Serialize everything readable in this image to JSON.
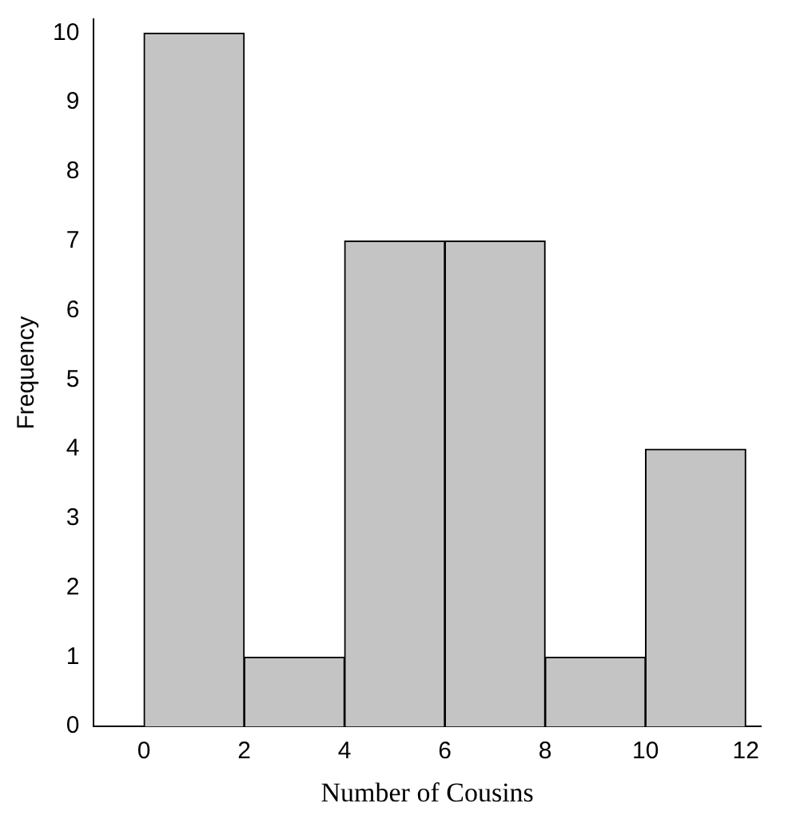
{
  "chart_data": {
    "type": "histogram",
    "xlabel": "Number of Cousins",
    "ylabel": "Frequency",
    "bins": [
      0,
      2,
      4,
      6,
      8,
      10,
      12
    ],
    "values": [
      10,
      1,
      7,
      7,
      1,
      4
    ],
    "color": "#c4c4c4",
    "xlim": [
      -1,
      12.3
    ],
    "xticks": [
      0,
      2,
      4,
      6,
      8,
      10,
      12
    ],
    "ylim": [
      0,
      10.2
    ],
    "yticks": [
      0,
      1,
      2,
      3,
      4,
      5,
      6,
      7,
      8,
      9,
      10
    ],
    "grid": false,
    "legend": false
  }
}
